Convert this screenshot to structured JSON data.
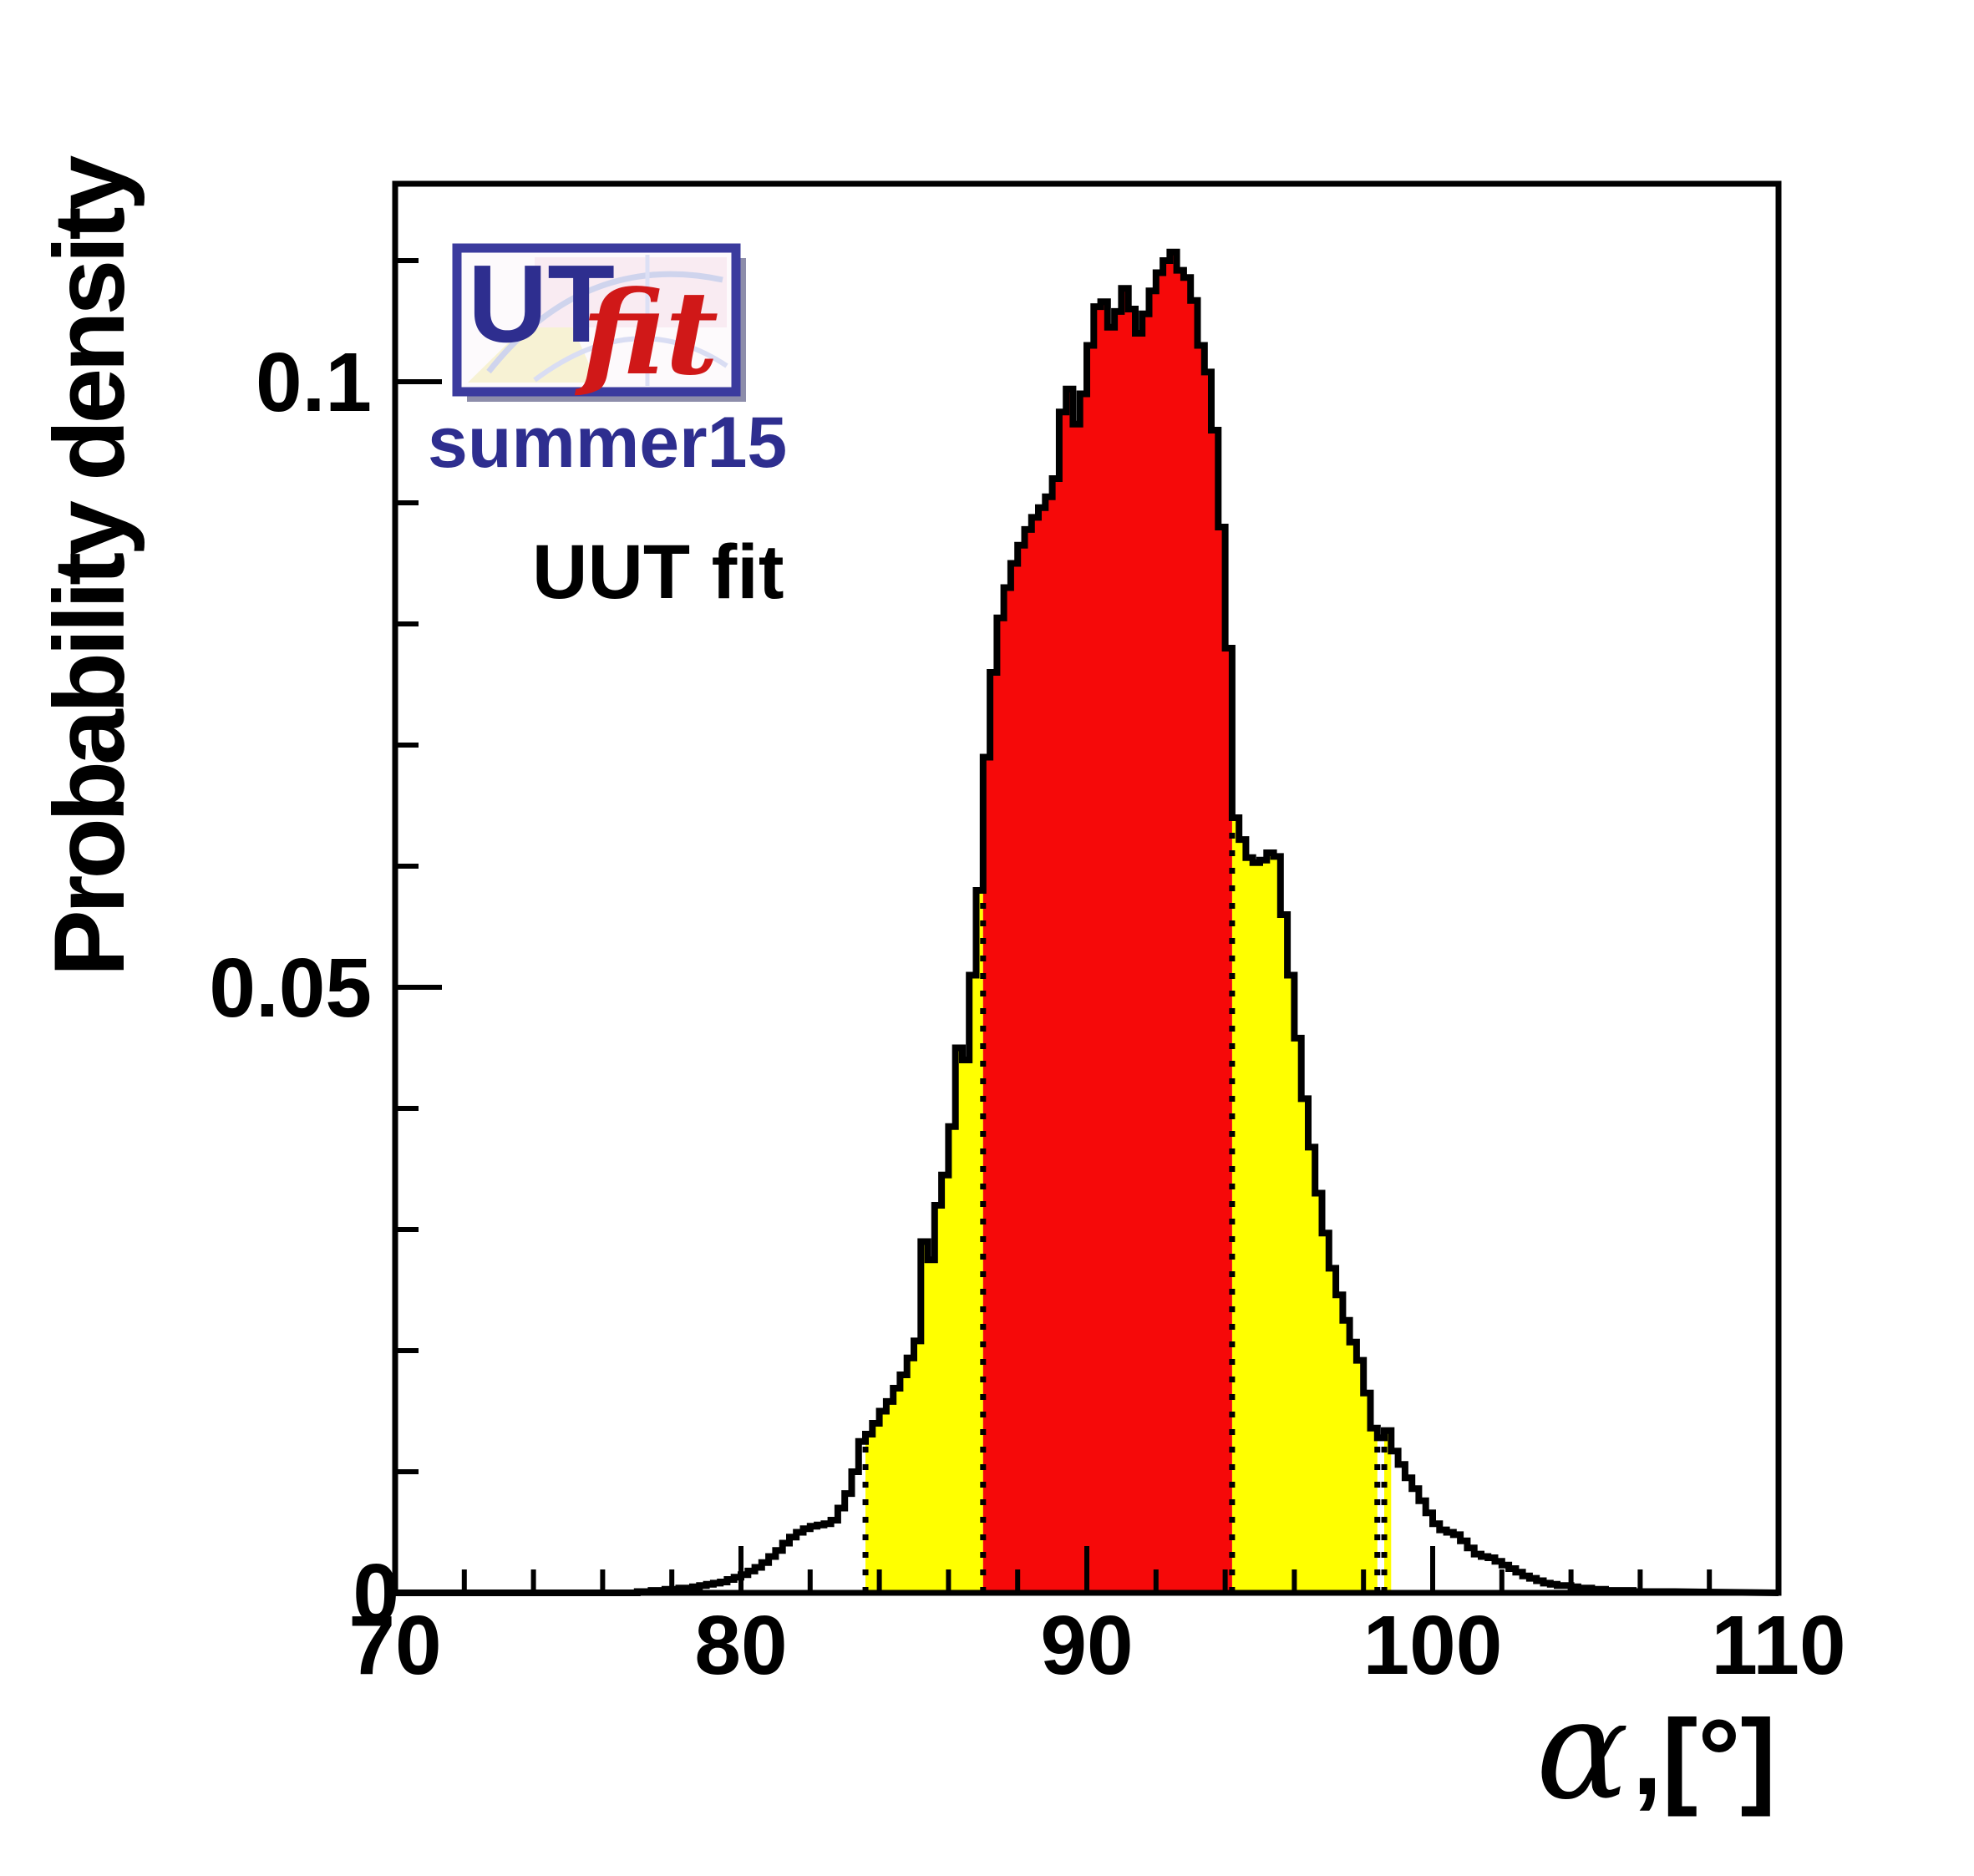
{
  "figure": {
    "logo": {
      "ut_text": "UT",
      "fit_text": "fit",
      "border_color": "#3b3b9e",
      "ut_color": "#2e2e8f",
      "fit_color": "#d01818"
    },
    "dataset_label": "summer15",
    "dataset_color": "#2e2e8f",
    "fit_label": "UUT fit"
  },
  "axes": {
    "x": {
      "label_symbol": "α",
      "label_rest": ",[°]",
      "min": 70,
      "max": 110,
      "minor_tick_step": 2,
      "major_ticks": [
        80,
        90,
        100
      ],
      "tick_labels": [
        {
          "value": 70,
          "text": "70"
        },
        {
          "value": 80,
          "text": "80"
        },
        {
          "value": 90,
          "text": "90"
        },
        {
          "value": 100,
          "text": "100"
        },
        {
          "value": 110,
          "text": "110"
        }
      ]
    },
    "y": {
      "title": "Probability density",
      "min": 0,
      "max": 0.1163,
      "minor_tick_step": 0.01,
      "major_ticks": [
        0.05,
        0.1
      ],
      "tick_labels": [
        {
          "value": 0,
          "text": "0"
        },
        {
          "value": 0.05,
          "text": "0.05"
        },
        {
          "value": 0.1,
          "text": "0.1"
        }
      ]
    }
  },
  "chart_data": {
    "type": "area",
    "title": "",
    "xlabel": "α,[°]",
    "ylabel": "Probability density",
    "xlim": [
      70,
      110
    ],
    "ylim": [
      0,
      0.1163
    ],
    "grid": false,
    "legend": "none",
    "bin_start": 77.0,
    "bin_width": 0.2,
    "values": [
      0.0001,
      0.0001,
      0.0002,
      0.0002,
      0.0003,
      0.0003,
      0.0004,
      0.0004,
      0.0005,
      0.0006,
      0.0007,
      0.0008,
      0.0009,
      0.0011,
      0.0013,
      0.0015,
      0.0018,
      0.0021,
      0.0025,
      0.003,
      0.0035,
      0.0041,
      0.0046,
      0.005,
      0.0053,
      0.0055,
      0.0056,
      0.0057,
      0.006,
      0.007,
      0.0082,
      0.01,
      0.0125,
      0.0131,
      0.014,
      0.015,
      0.0158,
      0.0169,
      0.018,
      0.0194,
      0.0208,
      0.029,
      0.0275,
      0.032,
      0.0345,
      0.0385,
      0.045,
      0.044,
      0.051,
      0.058,
      0.069,
      0.076,
      0.0805,
      0.083,
      0.085,
      0.0865,
      0.0878,
      0.0888,
      0.0896,
      0.0905,
      0.092,
      0.0975,
      0.0994,
      0.0965,
      0.099,
      0.103,
      0.1062,
      0.1066,
      0.1045,
      0.1058,
      0.1077,
      0.106,
      0.104,
      0.1056,
      0.1075,
      0.109,
      0.11,
      0.1107,
      0.1092,
      0.1086,
      0.1067,
      0.103,
      0.1008,
      0.096,
      0.088,
      0.078,
      0.064,
      0.0622,
      0.0607,
      0.0603,
      0.0605,
      0.0611,
      0.0608,
      0.056,
      0.051,
      0.0458,
      0.0408,
      0.0368,
      0.033,
      0.0297,
      0.0268,
      0.0246,
      0.0225,
      0.0207,
      0.0192,
      0.0165,
      0.0136,
      0.0128,
      0.0134,
      0.0117,
      0.0106,
      0.0095,
      0.0086,
      0.0076,
      0.0066,
      0.0057,
      0.0052,
      0.005,
      0.0048,
      0.0043,
      0.0037,
      0.0032,
      0.003,
      0.0029,
      0.0026,
      0.0023,
      0.002,
      0.0017,
      0.0014,
      0.0012,
      0.001,
      0.0008,
      0.0007,
      0.0006,
      0.0006,
      0.0005,
      0.0004,
      0.0004,
      0.0003,
      0.0003,
      0.0002,
      0.0002,
      0.0002,
      0.0002,
      0.0001,
      0.0001,
      0.0001,
      0.0001,
      0.0001,
      0.0001
    ],
    "regions": {
      "ci68": {
        "range": [
          87.0,
          94.2
        ],
        "color": "#f60909"
      },
      "ci95": {
        "ranges": [
          [
            83.6,
            87.0
          ],
          [
            94.2,
            98.4
          ],
          [
            98.6,
            98.8
          ]
        ],
        "color": "#ffff00"
      }
    },
    "boundary_lines_x": [
      83.6,
      87.0,
      94.2,
      98.4,
      98.6
    ],
    "outline_color": "#000000"
  }
}
